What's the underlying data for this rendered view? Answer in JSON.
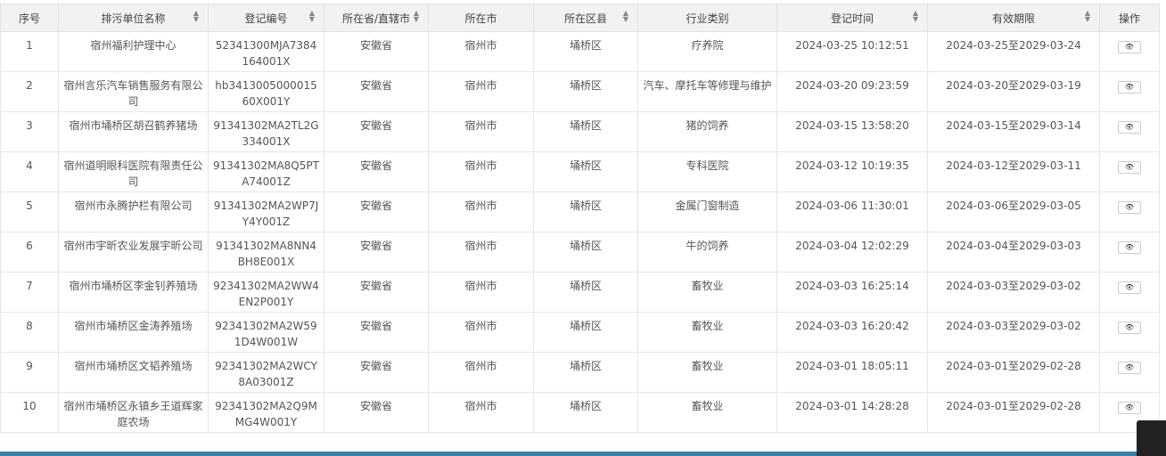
{
  "columns": [
    {
      "label": "序号",
      "sortable": false
    },
    {
      "label": "排污单位名称",
      "sortable": true
    },
    {
      "label": "登记编号",
      "sortable": true
    },
    {
      "label": "所在省/直辖市",
      "sortable": true
    },
    {
      "label": "所在市",
      "sortable": false
    },
    {
      "label": "所在区县",
      "sortable": true
    },
    {
      "label": "行业类别",
      "sortable": false
    },
    {
      "label": "登记时间",
      "sortable": true
    },
    {
      "label": "有效期限",
      "sortable": true
    },
    {
      "label": "操作",
      "sortable": false
    }
  ],
  "rows": [
    [
      "1",
      "宿州福利护理中心",
      "52341300MJA7384164001X",
      "安徽省",
      "宿州市",
      "埇桥区",
      "疗养院",
      "2024-03-25 10:12:51",
      "2024-03-25至2029-03-24"
    ],
    [
      "2",
      "宿州言乐汽车销售服务有限公司",
      "hb341300500001560X001Y",
      "安徽省",
      "宿州市",
      "埇桥区",
      "汽车、摩托车等修理与维护",
      "2024-03-20 09:23:59",
      "2024-03-20至2029-03-19"
    ],
    [
      "3",
      "宿州市埇桥区胡召鹤养猪场",
      "91341302MA2TL2G334001X",
      "安徽省",
      "宿州市",
      "埇桥区",
      "猪的饲养",
      "2024-03-15 13:58:20",
      "2024-03-15至2029-03-14"
    ],
    [
      "4",
      "宿州道明眼科医院有限责任公司",
      "91341302MA8Q5PTA74001Z",
      "安徽省",
      "宿州市",
      "埇桥区",
      "专科医院",
      "2024-03-12 10:19:35",
      "2024-03-12至2029-03-11"
    ],
    [
      "5",
      "宿州市永腾护栏有限公司",
      "91341302MA2WP7JY4Y001Z",
      "安徽省",
      "宿州市",
      "埇桥区",
      "金属门窗制造",
      "2024-03-06 11:30:01",
      "2024-03-06至2029-03-05"
    ],
    [
      "6",
      "宿州市宇昕农业发展宇昕公司",
      "91341302MA8NN4BH8E001X",
      "安徽省",
      "宿州市",
      "埇桥区",
      "牛的饲养",
      "2024-03-04 12:02:29",
      "2024-03-04至2029-03-03"
    ],
    [
      "7",
      "宿州市埇桥区李金钊养殖场",
      "92341302MA2WW4EN2P001Y",
      "安徽省",
      "宿州市",
      "埇桥区",
      "畜牧业",
      "2024-03-03 16:25:14",
      "2024-03-03至2029-03-02"
    ],
    [
      "8",
      "宿州市埇桥区金涛养殖场",
      "92341302MA2W591D4W001W",
      "安徽省",
      "宿州市",
      "埇桥区",
      "畜牧业",
      "2024-03-03 16:20:42",
      "2024-03-03至2029-03-02"
    ],
    [
      "9",
      "宿州市埇桥区文韬养殖场",
      "92341302MA2WCY8A03001Z",
      "安徽省",
      "宿州市",
      "埇桥区",
      "畜牧业",
      "2024-03-01 18:05:11",
      "2024-03-01至2029-02-28"
    ],
    [
      "10",
      "宿州市埇桥区永镇乡王道辉家庭农场",
      "92341302MA2Q9MMG4W001Y",
      "安徽省",
      "宿州市",
      "埇桥区",
      "畜牧业",
      "2024-03-01 14:28:28",
      "2024-03-01至2029-02-28"
    ]
  ],
  "action_icon": "eye-icon",
  "accent": "#3a7fa8"
}
